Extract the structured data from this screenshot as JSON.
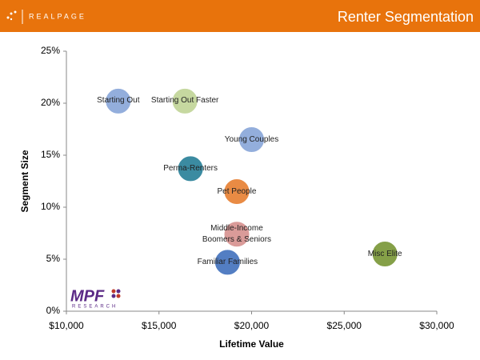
{
  "header": {
    "brand": "REALPAGE",
    "title": "Renter Segmentation"
  },
  "logo": {
    "mark": "MPF",
    "sub": "RESEARCH"
  },
  "chart_data": {
    "type": "scatter",
    "xlabel": "Lifetime Value",
    "ylabel": "Segment  Size",
    "labels": [
      "Starting Out",
      "Starting Out Faster",
      "Young Couples",
      "Perma-Renters",
      "Pet People",
      "Middle-Income Boomers & Seniors",
      "Familiar Families",
      "Misc Elite"
    ],
    "x": [
      12800,
      16400,
      20000,
      16700,
      19200,
      19200,
      18700,
      27200
    ],
    "values": [
      20.2,
      20.2,
      16.5,
      13.7,
      11.5,
      7.4,
      4.7,
      5.5
    ],
    "colors": [
      "#8eaadb",
      "#c3d69b",
      "#8eaadb",
      "#31859c",
      "#e8853b",
      "#d99694",
      "#4a78c0",
      "#7f9b3f"
    ],
    "xlim": [
      10000,
      30000
    ],
    "xticks": [
      {
        "value": 10000,
        "label": "$10,000"
      },
      {
        "value": 15000,
        "label": "$15,000"
      },
      {
        "value": 20000,
        "label": "$20,000"
      },
      {
        "value": 25000,
        "label": "$25,000"
      },
      {
        "value": 30000,
        "label": "$30,000"
      }
    ],
    "ylim": [
      0,
      25
    ],
    "yticks": [
      {
        "value": 0,
        "label": "0%"
      },
      {
        "value": 5,
        "label": "5%"
      },
      {
        "value": 10,
        "label": "10%"
      },
      {
        "value": 15,
        "label": "15%"
      },
      {
        "value": 20,
        "label": "20%"
      },
      {
        "value": 25,
        "label": "25%"
      }
    ]
  }
}
